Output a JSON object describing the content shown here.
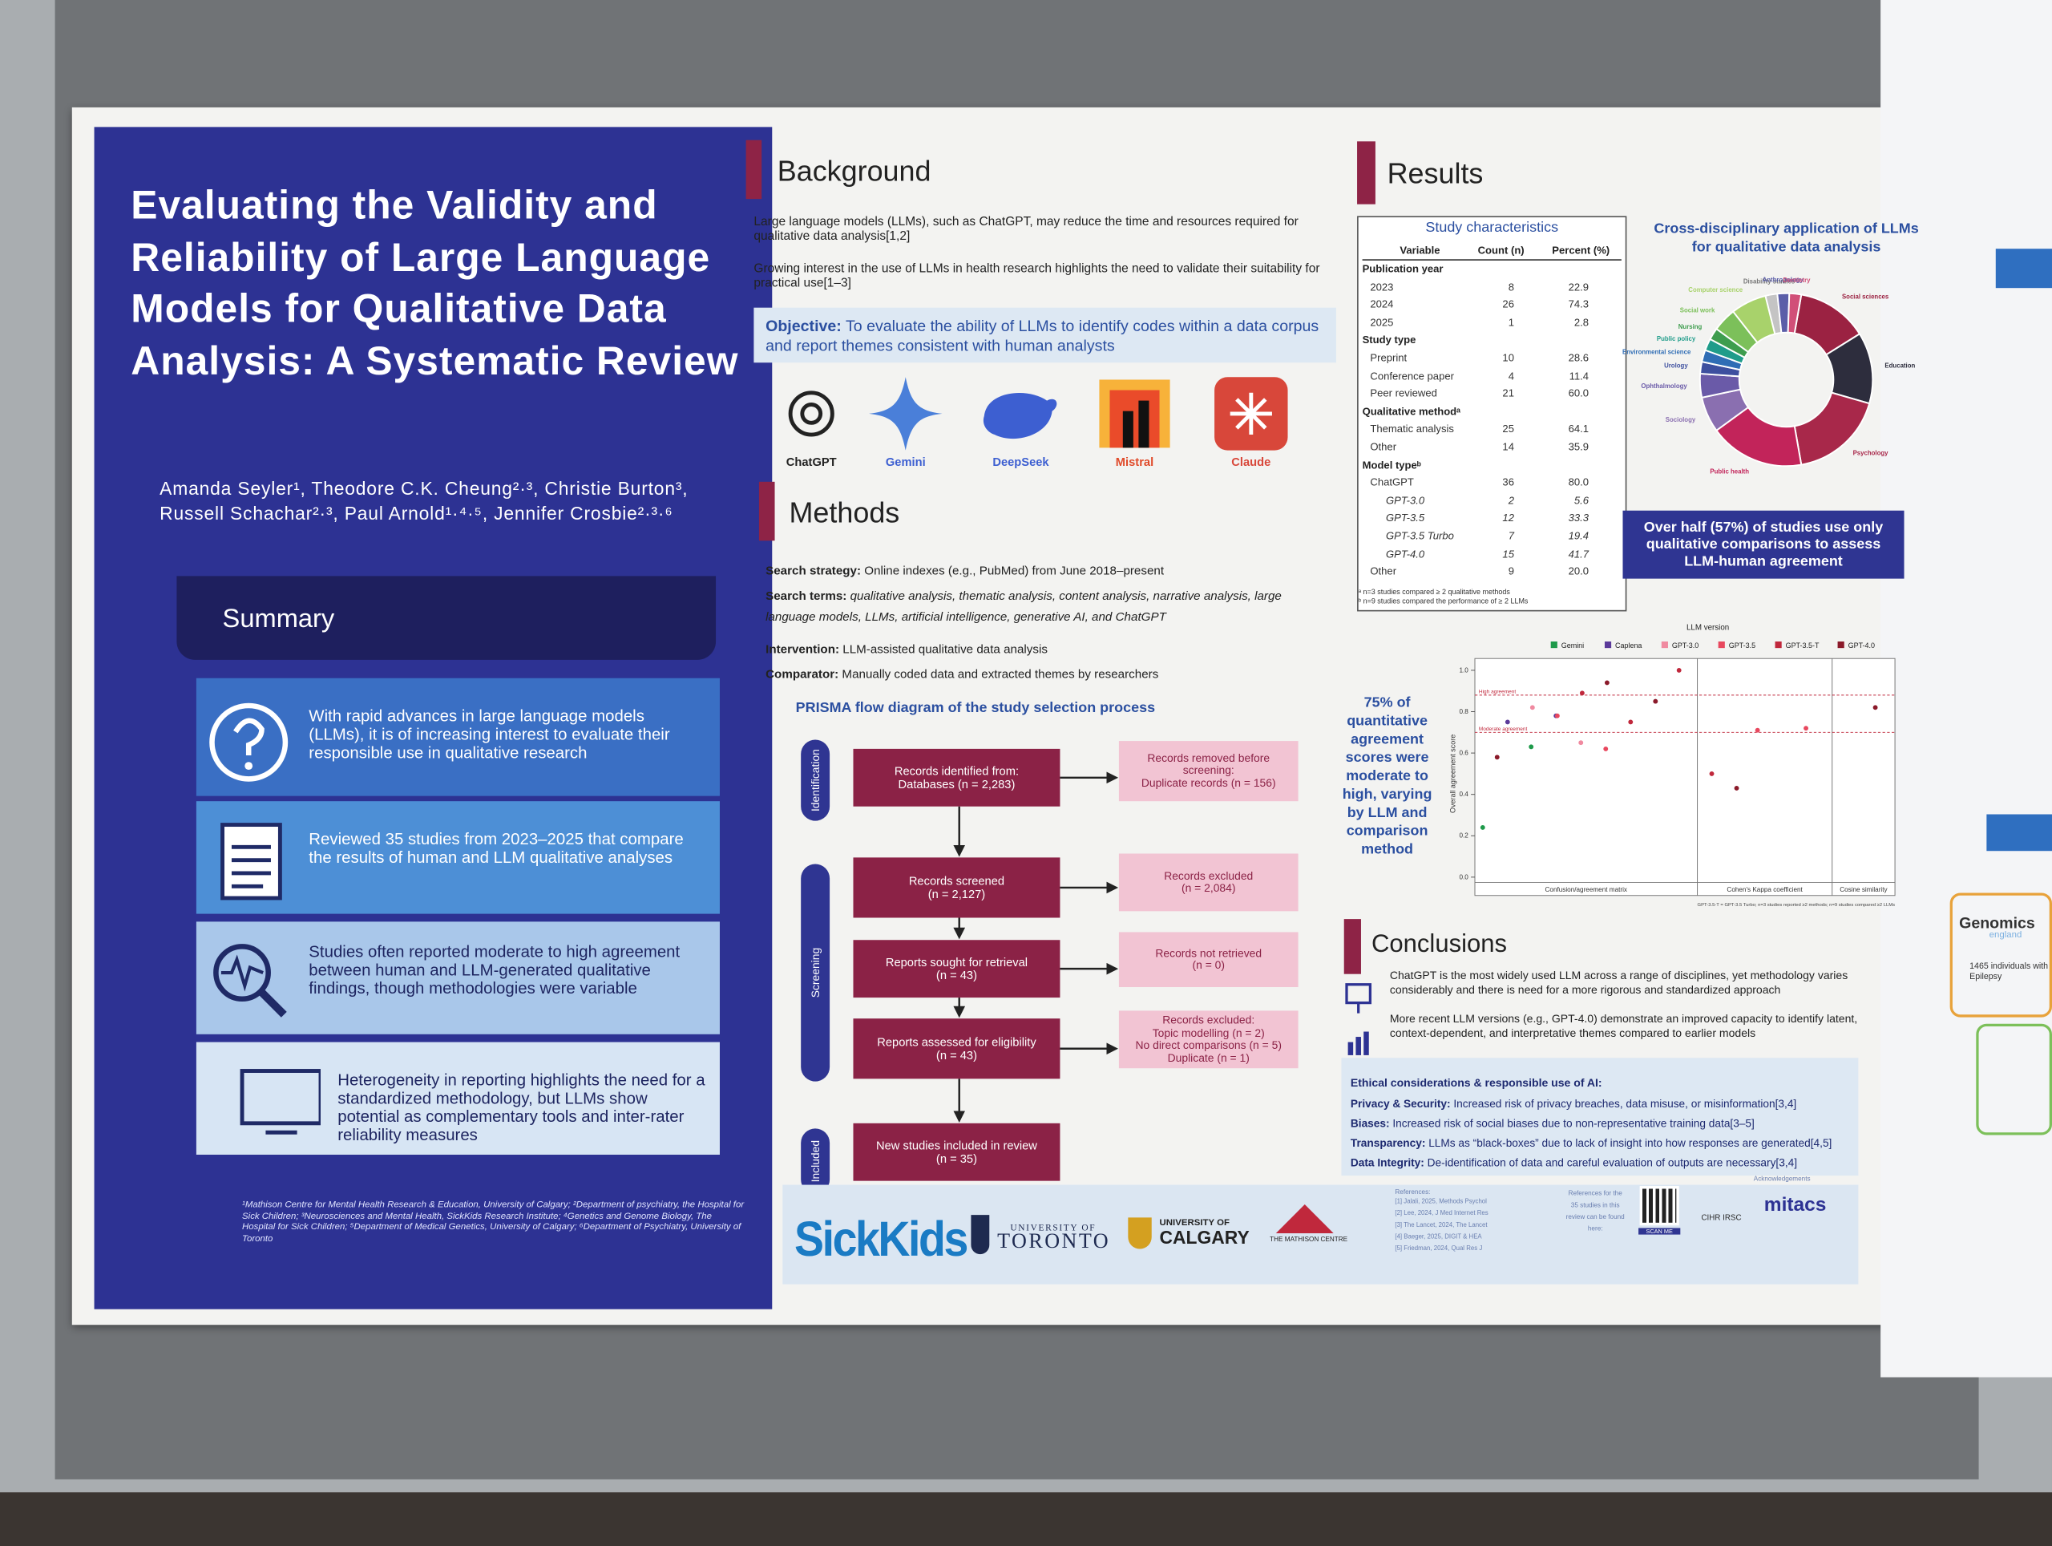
{
  "poster": {
    "title": "Evaluating the Validity and Reliability of Large Language Models for Qualitative Data Analysis: A Systematic Review",
    "authors": "Amanda Seyler¹, Theodore C.K. Cheung²·³, Christie Burton³, Russell Schachar²·³, Paul Arnold¹·⁴·⁵, Jennifer Crosbie²·³·⁶",
    "summary": {
      "heading": "Summary",
      "items": [
        "With rapid advances in large language models (LLMs), it is of increasing interest to evaluate their responsible use in qualitative research",
        "Reviewed 35 studies from 2023–2025 that compare the results of human and LLM qualitative analyses",
        "Studies often reported moderate to high agreement between human and LLM-generated qualitative findings, though methodologies were variable",
        "Heterogeneity in reporting highlights the need for a standardized methodology, but LLMs show potential as complementary tools and inter-rater reliability measures"
      ]
    },
    "affiliations": "¹Mathison Centre for Mental Health Research & Education, University of Calgary; ²Department of psychiatry, the Hospital for Sick Children; ³Neurosciences and Mental Health, SickKids Research Institute; ⁴Genetics and Genome Biology, The Hospital for Sick Children; ⁵Department of Medical Genetics, University of Calgary; ⁶Department of Psychiatry, University of Toronto",
    "background": {
      "heading": "Background",
      "paragraphs": [
        "Large language models (LLMs), such as ChatGPT, may reduce the time and resources required for qualitative data analysis[1,2]",
        "Growing interest in the use of LLMs in health research highlights the need to validate their suitability for practical use[1–3]"
      ],
      "objective_label": "Objective:",
      "objective": "To evaluate the ability of LLMs to identify codes within a data corpus and report themes consistent with human analysts"
    },
    "models": [
      "ChatGPT",
      "Gemini",
      "DeepSeek",
      "Mistral",
      "Claude"
    ],
    "methods": {
      "heading": "Methods",
      "items": [
        {
          "label": "Search strategy:",
          "text": "Online indexes (e.g., PubMed) from June 2018–present"
        },
        {
          "label": "Search terms:",
          "text": "qualitative analysis, thematic analysis, content analysis, narrative analysis, large language models, LLMs, artificial intelligence, generative AI, and ChatGPT"
        },
        {
          "label": "Intervention:",
          "text": "LLM-assisted qualitative data analysis"
        },
        {
          "label": "Comparator:",
          "text": "Manually coded data and extracted themes by researchers"
        }
      ]
    },
    "prisma": {
      "title": "PRISMA flow diagram of the study selection process",
      "stages": [
        "Identification",
        "Screening",
        "Included"
      ],
      "boxes": [
        [
          "Records identified from:",
          "Databases (n = 2,283)"
        ],
        [
          "Records screened",
          "(n = 2,127)"
        ],
        [
          "Reports sought for retrieval",
          "(n = 43)"
        ],
        [
          "Reports assessed for eligibility",
          "(n = 43)"
        ],
        [
          "New studies included in review",
          "(n = 35)"
        ]
      ],
      "side_boxes": [
        [
          "Records removed before",
          "screening:",
          "Duplicate records (n = 156)"
        ],
        [
          "Records excluded",
          "(n = 2,084)"
        ],
        [
          "Records not retrieved",
          "(n = 0)"
        ],
        [
          "Records excluded:",
          "Topic modelling (n = 2)",
          "No direct comparisons (n = 5)",
          "Duplicate (n = 1)"
        ]
      ]
    },
    "results": {
      "heading": "Results",
      "agreement_callout": "75% of quantitative agreement scores were moderate to high, varying by LLM and comparison method",
      "pie_callout": "Over half (57%) of studies use only qualitative comparisons to assess LLM-human agreement"
    },
    "table": {
      "title": "Study characteristics",
      "columns": [
        "Variable",
        "Count (n)",
        "Percent (%)"
      ],
      "rows": [
        [
          "Publication year"
        ],
        [
          "2023",
          "8",
          "22.9"
        ],
        [
          "2024",
          "26",
          "74.3"
        ],
        [
          "2025",
          "1",
          "2.8"
        ],
        [
          "Study type"
        ],
        [
          "Preprint",
          "10",
          "28.6"
        ],
        [
          "Conference paper",
          "4",
          "11.4"
        ],
        [
          "Peer reviewed",
          "21",
          "60.0"
        ],
        [
          "Qualitative methodᵃ"
        ],
        [
          "Thematic analysis",
          "25",
          "64.1"
        ],
        [
          "Other",
          "14",
          "35.9"
        ],
        [
          "Model typeᵇ"
        ],
        [
          "ChatGPT",
          "36",
          "80.0"
        ],
        [
          "GPT-3.0",
          "2",
          "5.6"
        ],
        [
          "GPT-3.5",
          "12",
          "33.3"
        ],
        [
          "GPT-3.5 Turbo",
          "7",
          "19.4"
        ],
        [
          "GPT-4.0",
          "15",
          "41.7"
        ],
        [
          "Other",
          "9",
          "20.0"
        ]
      ],
      "footnotes": [
        "ᵃ n=3 studies compared ≥ 2 qualitative methods",
        "ᵇ n=9 studies compared the performance of ≥ 2 LLMs"
      ]
    },
    "conclusions": {
      "heading": "Conclusions",
      "items": [
        "ChatGPT is the most widely used LLM across a range of disciplines, yet methodology varies considerably and there is need for a more rigorous and standardized approach",
        "More recent LLM versions (e.g., GPT-4.0) demonstrate an improved capacity to identify latent, context-dependent, and interpretative themes compared to earlier models"
      ],
      "ethics_title": "Ethical considerations & responsible use of AI:",
      "ethics": [
        {
          "label": "Privacy & Security:",
          "text": "Increased risk of privacy breaches, data misuse, or misinformation[3,4]"
        },
        {
          "label": "Biases:",
          "text": "Increased risk of social biases due to non-representative training data[3–5]"
        },
        {
          "label": "Transparency:",
          "text": "LLMs as “black-boxes” due to lack of insight into how responses are generated[4,5]"
        },
        {
          "label": "Data Integrity:",
          "text": "De-identification of data and careful evaluation of outputs are necessary[3,4]"
        }
      ]
    },
    "footer": {
      "sickkids": "SickKids",
      "uoft": [
        "UNIVERSITY OF",
        "TORONTO"
      ],
      "ucalgary": [
        "UNIVERSITY OF",
        "CALGARY"
      ],
      "mathison": "THE MATHISON CENTRE",
      "references_title": "References:",
      "references": [
        "[1] Jalali, 2025, Methods Psychol",
        "[2] Lee, 2024, J Med Internet Res",
        "[3] The Lancet, 2024, The Lancet",
        "[4] Baeger, 2025, DIGIT & HEA",
        "[5] Friedman, 2024, Qual Res J"
      ],
      "qr_text": "References for the 35 studies in this review can be found here:",
      "scan": "SCAN ME",
      "acknowledgements": "Acknowledgements",
      "cihr": "CIHR IRSC",
      "mitacs": "mitacs"
    },
    "neighbor": {
      "brand": "Genomics",
      "sub": "england",
      "note": "1465 individuals with Epilepsy"
    }
  },
  "chart_data": [
    {
      "type": "pie",
      "title": "Cross-disciplinary application of LLMs for qualitative data analysis",
      "categories": [
        "Social sciences",
        "Education",
        "Psychology",
        "Public health",
        "Sociology",
        "Ophthalmology",
        "Urology",
        "Environmental science",
        "Public policy",
        "Nursing",
        "Social work",
        "Computer science",
        "Disability studies",
        "Anthropology",
        "Dentistry"
      ],
      "values": [
        6,
        6,
        8,
        8,
        3,
        2,
        1,
        1,
        1,
        1,
        2,
        3,
        1,
        1,
        1
      ],
      "colors": [
        "#9b2242",
        "#2d2d3d",
        "#a8284a",
        "#c2245a",
        "#8a6fb0",
        "#6a5aa8",
        "#3d4f9f",
        "#2f6db5",
        "#1f9c8a",
        "#3e9d4e",
        "#7cc05a",
        "#a8d26b",
        "#c4c4c4",
        "#5b5ea8",
        "#d14f78"
      ],
      "donut": true
    },
    {
      "type": "scatter",
      "title": "LLM version",
      "ylabel": "Overall agreement score",
      "groups": [
        "Confusion/agreement matrix",
        "Cohen's Kappa coefficient",
        "Cosine similarity"
      ],
      "ylim": [
        0,
        1
      ],
      "yticks": [
        {
          "value": 0,
          "label": "0.0"
        },
        {
          "value": 0.2,
          "label": "0.2"
        },
        {
          "value": 0.4,
          "label": "0.4"
        },
        {
          "value": 0.6,
          "label": "0.6"
        },
        {
          "value": 0.8,
          "label": "0.8"
        },
        {
          "value": 1,
          "label": "1.0"
        }
      ],
      "annotations": [
        {
          "label": "High agreement",
          "value": 0.88
        },
        {
          "label": "Moderate agreement",
          "value": 0.7
        }
      ],
      "series": [
        {
          "name": "Gemini",
          "color": "#1e9a4a",
          "group": [
            0,
            0
          ],
          "values": [
            0.24,
            0.63
          ]
        },
        {
          "name": "Caplena",
          "color": "#5b3a9a",
          "group": [
            0,
            0
          ],
          "values": [
            0.75,
            0.78
          ]
        },
        {
          "name": "GPT-3.0",
          "color": "#f08aa0",
          "group": [
            0,
            0
          ],
          "values": [
            0.82,
            0.65
          ]
        },
        {
          "name": "GPT-3.5",
          "color": "#e8485e",
          "group": [
            0,
            0,
            1,
            1
          ],
          "values": [
            0.78,
            0.62,
            0.71,
            0.72
          ]
        },
        {
          "name": "GPT-3.5-T",
          "color": "#c0283c",
          "group": [
            0,
            0,
            0,
            1
          ],
          "values": [
            0.89,
            0.75,
            1.0,
            0.5
          ]
        },
        {
          "name": "GPT-4.0",
          "color": "#8b1a2a",
          "group": [
            0,
            0,
            0,
            1,
            2
          ],
          "values": [
            0.94,
            0.85,
            0.58,
            0.43,
            0.82
          ]
        }
      ],
      "legend": "top",
      "note": "GPT-3.5-T = GPT-3.5 Turbo; n=3 studies reported ≥2 methods; n=9 studies compared ≥2 LLMs"
    }
  ]
}
